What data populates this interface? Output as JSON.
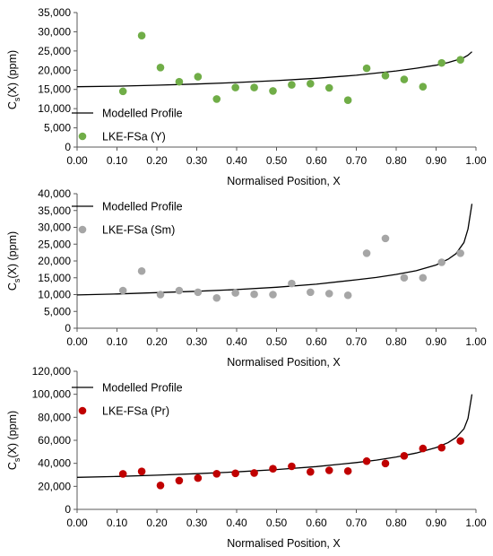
{
  "chart_data": [
    {
      "type": "scatter",
      "xlabel": "Normalised Position, X",
      "ylabel_main": "C",
      "ylabel_sub": "s",
      "ylabel_rest": "(X) (ppm)",
      "xlim": [
        0,
        1
      ],
      "ylim": [
        0,
        35000
      ],
      "x_ticks": [
        "0.00",
        "0.10",
        "0.20",
        "0.30",
        "0.40",
        "0.50",
        "0.60",
        "0.70",
        "0.80",
        "0.90",
        "1.00"
      ],
      "y_ticks": [
        "0",
        "5,000",
        "10,000",
        "15,000",
        "20,000",
        "25,000",
        "30,000",
        "35,000"
      ],
      "grid": false,
      "legend_position": "left",
      "series": [
        {
          "name": "Modelled Profile",
          "kind": "line",
          "color": "#000000",
          "x": [
            0,
            0.1,
            0.2,
            0.3,
            0.4,
            0.5,
            0.6,
            0.7,
            0.8,
            0.85,
            0.9,
            0.93,
            0.95,
            0.97,
            0.98,
            0.99
          ],
          "y": [
            15700,
            15850,
            16100,
            16400,
            16800,
            17300,
            17900,
            18700,
            19800,
            20500,
            21300,
            22000,
            22600,
            23300,
            23900,
            24800
          ]
        },
        {
          "name": "LKE-FSa (Y)",
          "kind": "points",
          "color": "#70AD47",
          "x": [
            0.115,
            0.162,
            0.209,
            0.256,
            0.303,
            0.35,
            0.397,
            0.444,
            0.491,
            0.538,
            0.585,
            0.632,
            0.679,
            0.726,
            0.773,
            0.82,
            0.867,
            0.914,
            0.961
          ],
          "y": [
            14500,
            29000,
            20700,
            17000,
            18300,
            12500,
            15500,
            15500,
            14600,
            16200,
            16500,
            15400,
            12200,
            20500,
            18600,
            17600,
            15700,
            21900,
            22700
          ]
        }
      ]
    },
    {
      "type": "scatter",
      "xlabel": "Normalised Position, X",
      "ylabel_main": "C",
      "ylabel_sub": "s",
      "ylabel_rest": "(X) (ppm)",
      "xlim": [
        0,
        1
      ],
      "ylim": [
        0,
        40000
      ],
      "x_ticks": [
        "0.00",
        "0.10",
        "0.20",
        "0.30",
        "0.40",
        "0.50",
        "0.60",
        "0.70",
        "0.80",
        "0.90",
        "1.00"
      ],
      "y_ticks": [
        "0",
        "5,000",
        "10,000",
        "15,000",
        "20,000",
        "25,000",
        "30,000",
        "35,000",
        "40,000"
      ],
      "grid": false,
      "legend_position": "top-left",
      "series": [
        {
          "name": "Modelled Profile",
          "kind": "line",
          "color": "#000000",
          "x": [
            0,
            0.1,
            0.2,
            0.3,
            0.4,
            0.5,
            0.6,
            0.7,
            0.75,
            0.8,
            0.85,
            0.9,
            0.93,
            0.95,
            0.97,
            0.98,
            0.99
          ],
          "y": [
            9900,
            10200,
            10600,
            11000,
            11500,
            12200,
            13100,
            14400,
            15100,
            16000,
            17100,
            18800,
            20500,
            22200,
            25500,
            29500,
            37000
          ]
        },
        {
          "name": "LKE-FSa (Sm)",
          "kind": "points",
          "color": "#A6A6A6",
          "x": [
            0.115,
            0.162,
            0.209,
            0.256,
            0.303,
            0.35,
            0.397,
            0.444,
            0.491,
            0.538,
            0.585,
            0.632,
            0.679,
            0.726,
            0.773,
            0.82,
            0.867,
            0.914,
            0.961
          ],
          "y": [
            11200,
            17000,
            10000,
            11200,
            10700,
            9000,
            10500,
            10100,
            10000,
            13300,
            10700,
            10300,
            9800,
            22300,
            26700,
            15000,
            15000,
            19600,
            22300
          ]
        }
      ]
    },
    {
      "type": "scatter",
      "xlabel": "Normalised Position, X",
      "ylabel_main": "C",
      "ylabel_sub": "s",
      "ylabel_rest": "(X) (ppm)",
      "xlim": [
        0,
        1
      ],
      "ylim": [
        0,
        120000
      ],
      "x_ticks": [
        "0.00",
        "0.10",
        "0.20",
        "0.30",
        "0.40",
        "0.50",
        "0.60",
        "0.70",
        "0.80",
        "0.90",
        "1.00"
      ],
      "y_ticks": [
        "0",
        "20,000",
        "40,000",
        "60,000",
        "80,000",
        "100,000",
        "120,000"
      ],
      "grid": false,
      "legend_position": "top-left",
      "series": [
        {
          "name": "Modelled Profile",
          "kind": "line",
          "color": "#000000",
          "x": [
            0,
            0.1,
            0.2,
            0.3,
            0.4,
            0.5,
            0.6,
            0.7,
            0.75,
            0.8,
            0.85,
            0.9,
            0.93,
            0.95,
            0.97,
            0.98,
            0.99
          ],
          "y": [
            27800,
            28600,
            29700,
            31000,
            32600,
            34600,
            37200,
            40700,
            42800,
            45500,
            48900,
            53700,
            58000,
            62500,
            70000,
            79000,
            100000
          ]
        },
        {
          "name": "LKE-FSa (Pr)",
          "kind": "points",
          "color": "#C00000",
          "x": [
            0.115,
            0.162,
            0.209,
            0.256,
            0.303,
            0.35,
            0.397,
            0.444,
            0.491,
            0.538,
            0.585,
            0.632,
            0.679,
            0.726,
            0.773,
            0.82,
            0.867,
            0.914,
            0.961
          ],
          "y": [
            30800,
            33000,
            20800,
            25000,
            27200,
            30900,
            31300,
            31600,
            35300,
            37400,
            32600,
            33900,
            33300,
            41900,
            39900,
            46500,
            52900,
            53600,
            59500
          ]
        }
      ]
    }
  ]
}
